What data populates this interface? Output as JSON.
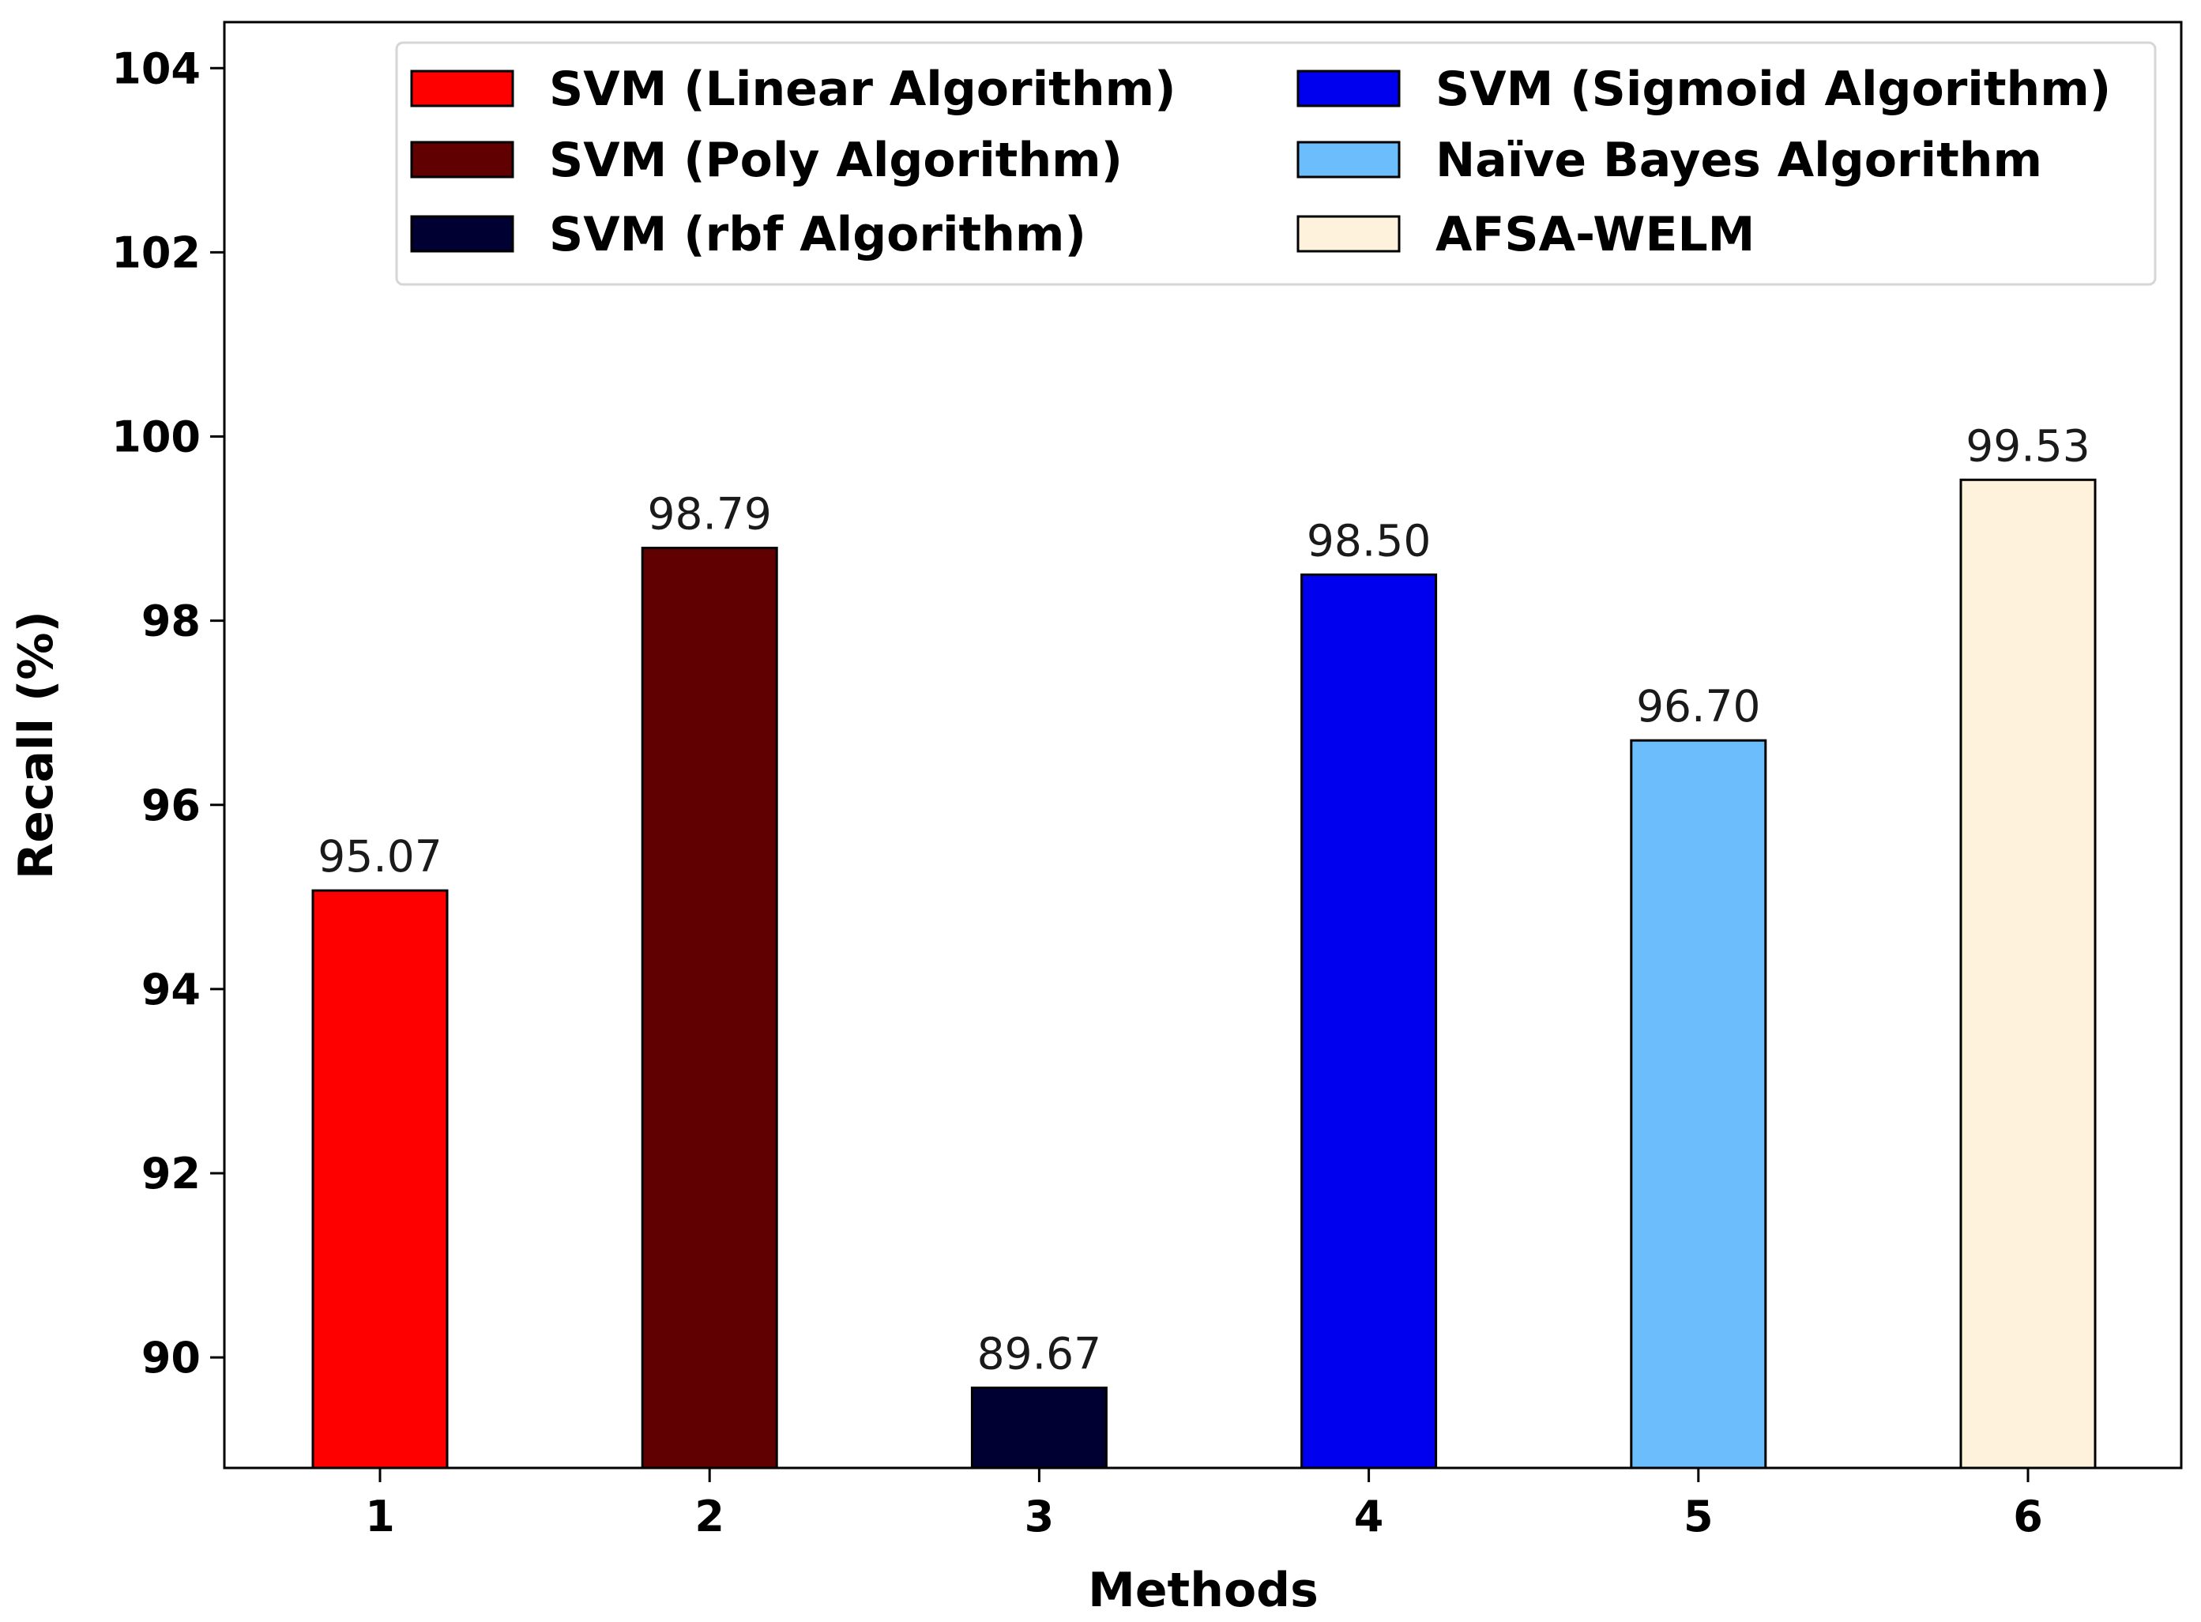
{
  "chart_data": {
    "type": "bar",
    "title": "",
    "xlabel": "Methods",
    "ylabel": "Recall (%)",
    "categories": [
      "1",
      "2",
      "3",
      "4",
      "5",
      "6"
    ],
    "values": [
      95.07,
      98.79,
      89.67,
      98.5,
      96.7,
      99.53
    ],
    "value_labels": [
      "95.07",
      "98.79",
      "89.67",
      "98.50",
      "96.70",
      "99.53"
    ],
    "ylim": [
      88.8,
      104.5
    ],
    "yticks": [
      90,
      92,
      94,
      96,
      98,
      100,
      102,
      104
    ],
    "legend_position": "top-right",
    "series": [
      {
        "name": "SVM (Linear Algorithm)",
        "color": "#ff0000"
      },
      {
        "name": "SVM (Poly Algorithm)",
        "color": "#610000"
      },
      {
        "name": "SVM (rbf Algorithm)",
        "color": "#000033"
      },
      {
        "name": "SVM (Sigmoid Algorithm)",
        "color": "#0000ee"
      },
      {
        "name": "Naïve Bayes Algorithm",
        "color": "#6cbdfb"
      },
      {
        "name": "AFSA-WELM",
        "color": "#fff2dd"
      }
    ]
  }
}
